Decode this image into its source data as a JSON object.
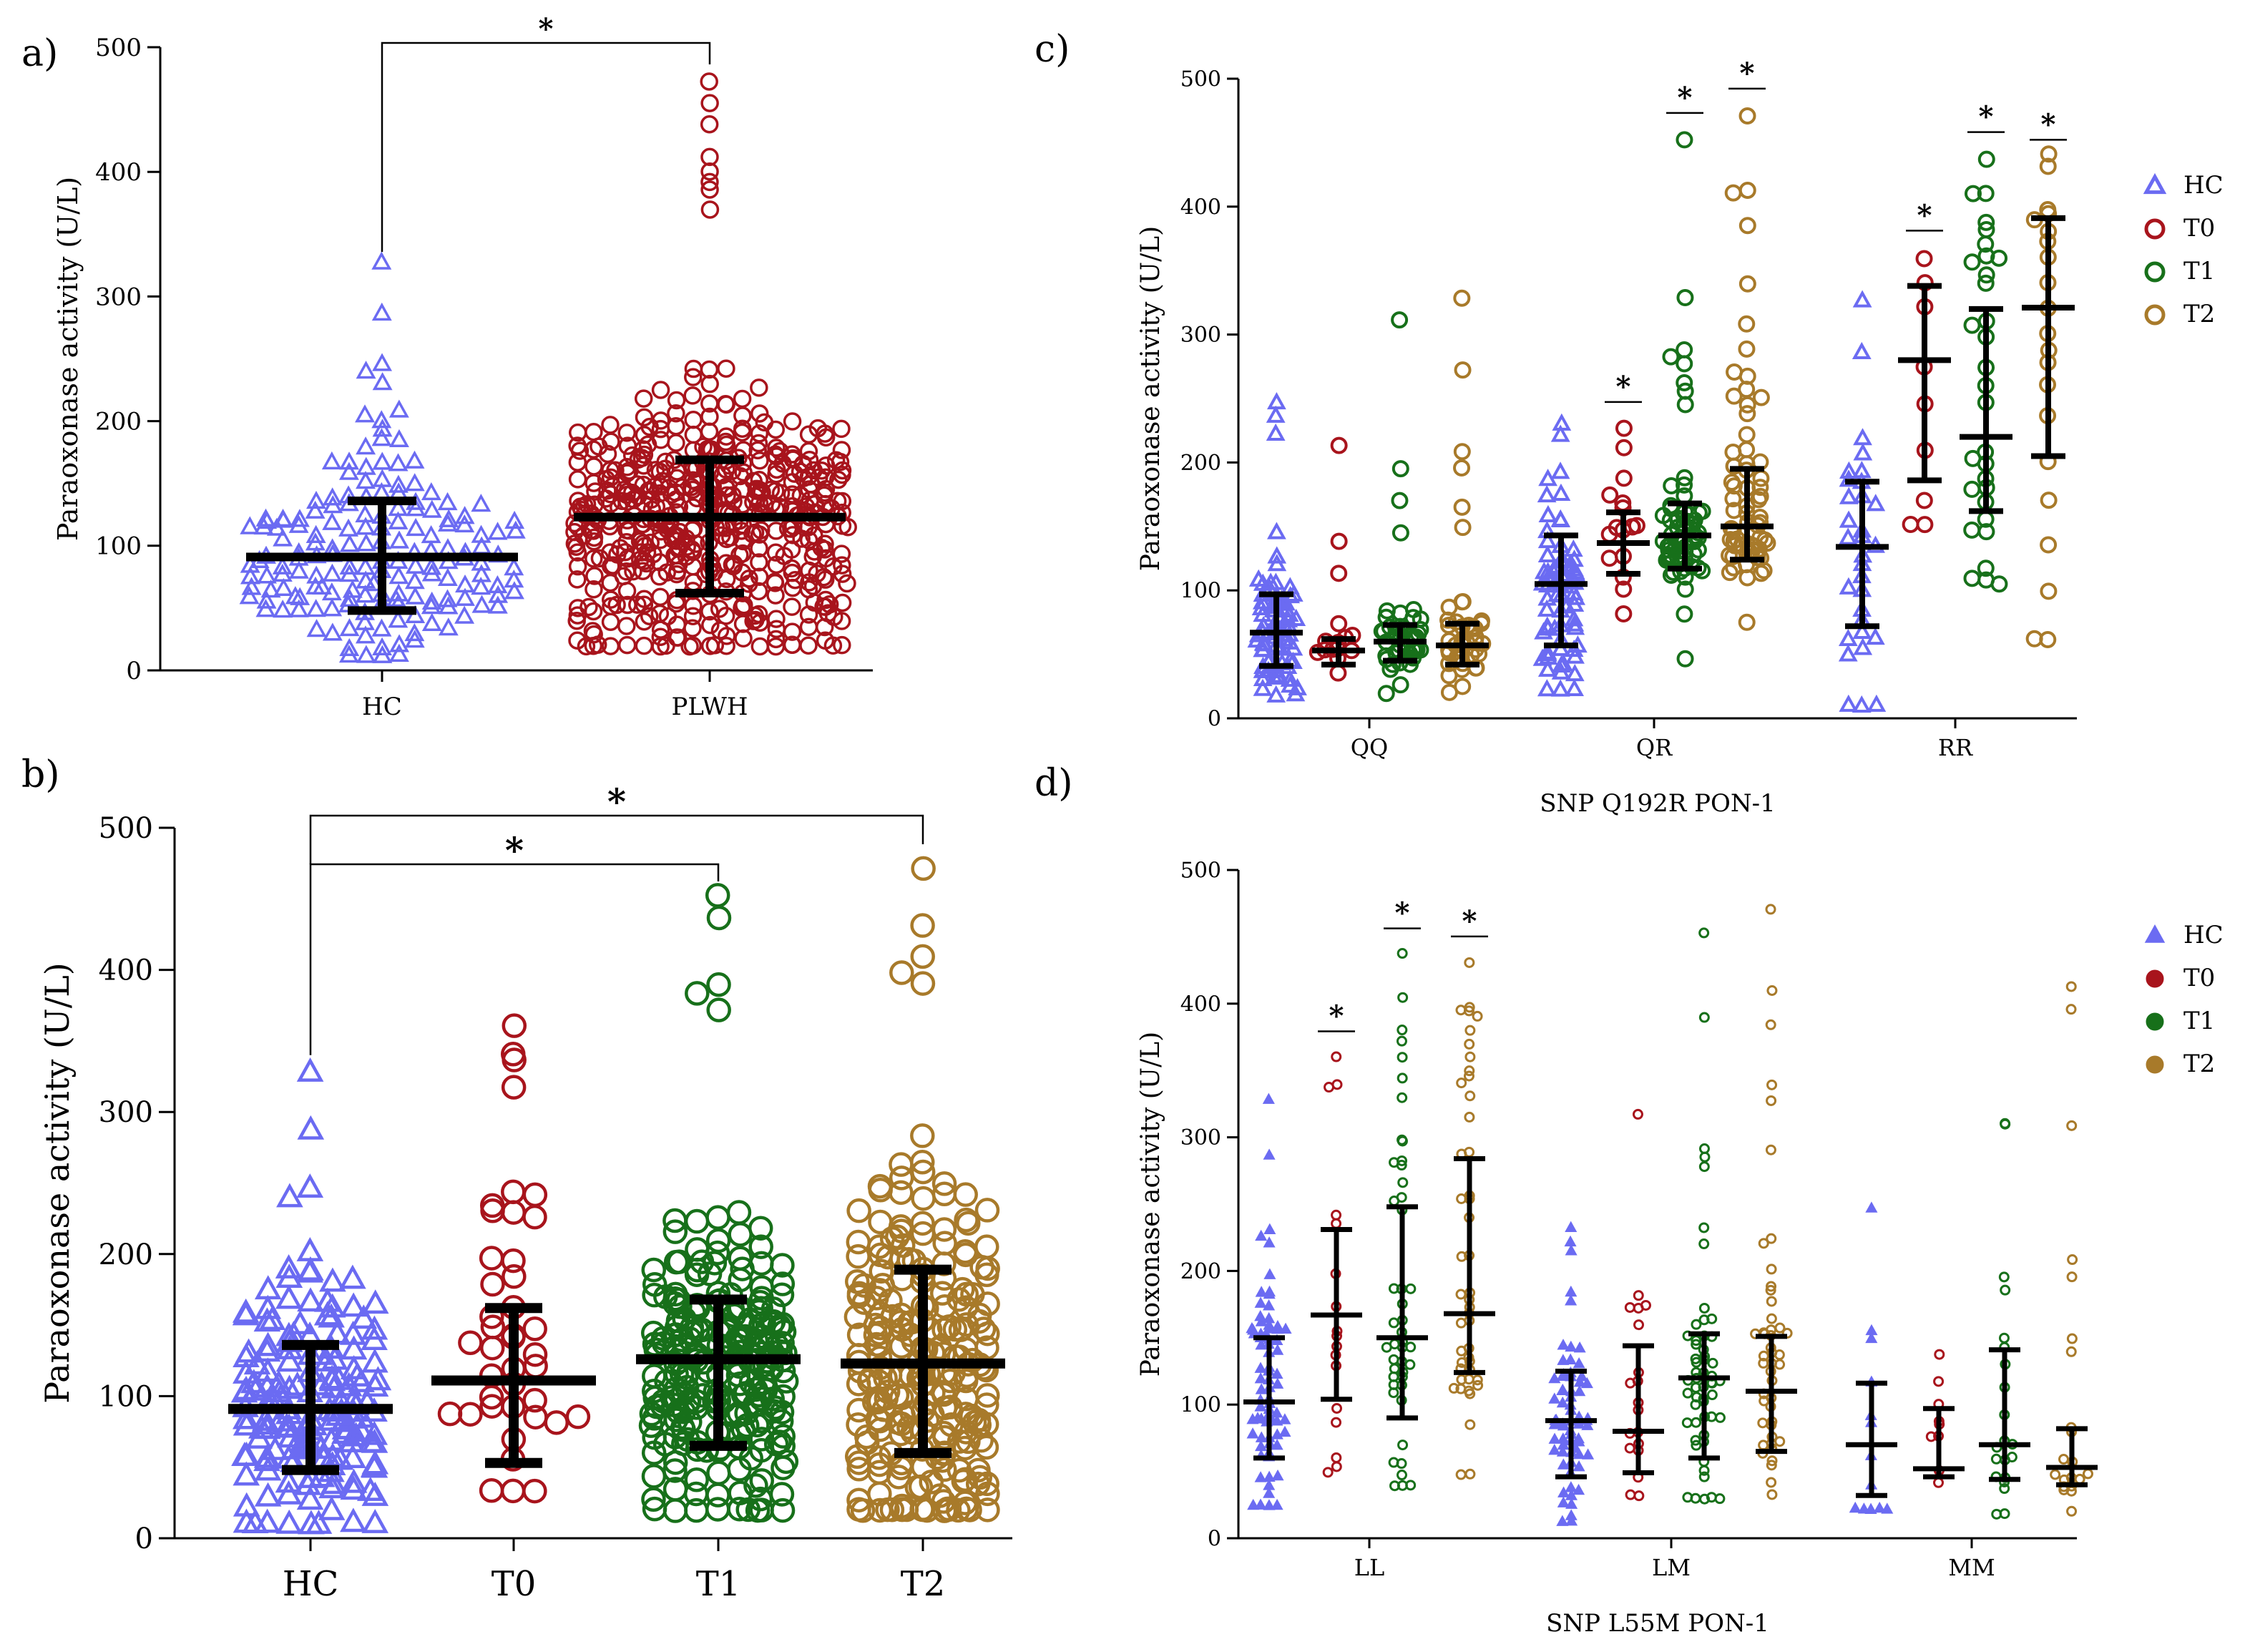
{
  "colors": {
    "HC": "#6b6bf2",
    "T0": "#a8141c",
    "T1": "#17701a",
    "T2": "#a87a2a"
  },
  "figure": {
    "y_axis_label": "Paraoxonase activity (U/L)"
  },
  "chart_data": [
    {
      "panel": "a)",
      "type": "scatter",
      "title": "",
      "xlabel": "",
      "ylabel": "Paraoxonase activity (U/L)",
      "ylim": [
        0,
        500
      ],
      "yticks": [
        "0",
        "100",
        "200",
        "300",
        "400",
        "500"
      ],
      "categories": [
        "HC",
        "PLWH"
      ],
      "series": [
        {
          "name": "HC",
          "color_key": "HC",
          "marker": "triangle",
          "n": 170,
          "mean": 91,
          "sd_low": 48,
          "sd_high": 136,
          "min": 12,
          "max": 328,
          "outliers": [
            328,
            287,
            246,
            240,
            230
          ]
        },
        {
          "name": "PLWH",
          "color_key": "T0",
          "marker": "circle",
          "n": 520,
          "mean": 123,
          "sd_low": 62,
          "sd_high": 169,
          "min": 20,
          "max": 472,
          "outliers": [
            472,
            455,
            438,
            412,
            400,
            392,
            385,
            370
          ]
        }
      ],
      "significance": [
        {
          "from": "HC",
          "to": "PLWH",
          "label": "*"
        }
      ]
    },
    {
      "panel": "b)",
      "type": "scatter",
      "title": "",
      "xlabel": "",
      "ylabel": "Paraoxonase activity (U/L)",
      "ylim": [
        0,
        500
      ],
      "yticks": [
        "0",
        "100",
        "200",
        "300",
        "400",
        "500"
      ],
      "categories": [
        "HC",
        "T0",
        "T1",
        "T2"
      ],
      "series": [
        {
          "name": "HC",
          "color_key": "HC",
          "marker": "triangle",
          "n": 170,
          "mean": 91,
          "sd_low": 48,
          "sd_high": 136,
          "min": 10,
          "max": 328,
          "outliers": [
            328,
            287,
            246,
            240
          ]
        },
        {
          "name": "T0",
          "color_key": "T0",
          "marker": "circle",
          "n": 40,
          "mean": 111,
          "sd_low": 53,
          "sd_high": 162,
          "min": 33,
          "max": 360,
          "outliers": [
            360,
            340,
            336,
            318,
            242,
            230,
            226
          ]
        },
        {
          "name": "T1",
          "color_key": "T1",
          "marker": "circle",
          "n": 240,
          "mean": 126,
          "sd_low": 65,
          "sd_high": 168,
          "min": 20,
          "max": 452,
          "outliers": [
            452,
            436,
            390,
            383,
            372
          ]
        },
        {
          "name": "T2",
          "color_key": "T2",
          "marker": "circle",
          "n": 240,
          "mean": 123,
          "sd_low": 60,
          "sd_high": 189,
          "min": 20,
          "max": 471,
          "outliers": [
            471,
            431,
            410,
            398,
            390
          ]
        }
      ],
      "significance": [
        {
          "from": "HC",
          "to": "T1",
          "label": "*"
        },
        {
          "from": "HC",
          "to": "T2",
          "label": "*"
        }
      ]
    },
    {
      "panel": "c)",
      "type": "scatter",
      "title": "",
      "xlabel": "SNP Q192R PON-1",
      "ylabel": "Paraoxonase activity (U/L)",
      "ylim": [
        0,
        500
      ],
      "yticks": [
        "0",
        "100",
        "200",
        "300",
        "400",
        "500"
      ],
      "categories": [
        "QQ",
        "QR",
        "RR"
      ],
      "legend": [
        "HC",
        "T0",
        "T1",
        "T2"
      ],
      "legend_marker": "open",
      "groups": [
        {
          "category": "QQ",
          "series": [
            {
              "name": "HC",
              "n": 80,
              "mean": 67,
              "sd_low": 41,
              "sd_high": 97,
              "min": 18,
              "max": 246,
              "outliers": [
                246,
                236,
                222
              ]
            },
            {
              "name": "T0",
              "n": 14,
              "mean": 53,
              "sd_low": 42,
              "sd_high": 62,
              "min": 35,
              "max": 214,
              "outliers": [
                214,
                138,
                113
              ]
            },
            {
              "name": "T1",
              "n": 45,
              "mean": 60,
              "sd_low": 45,
              "sd_high": 73,
              "min": 20,
              "max": 311,
              "outliers": [
                311,
                195,
                170,
                145
              ]
            },
            {
              "name": "T2",
              "n": 45,
              "mean": 57,
              "sd_low": 42,
              "sd_high": 74,
              "min": 20,
              "max": 328,
              "outliers": [
                328,
                272,
                208,
                195,
                165,
                150
              ]
            }
          ]
        },
        {
          "category": "QR",
          "series": [
            {
              "name": "HC",
              "n": 70,
              "mean": 105,
              "sd_low": 57,
              "sd_high": 143,
              "min": 22,
              "max": 230,
              "outliers": [
                230,
                222
              ]
            },
            {
              "name": "T0",
              "n": 16,
              "mean": 137,
              "sd_low": 113,
              "sd_high": 161,
              "min": 82,
              "max": 226,
              "outliers": [
                226,
                212
              ]
            },
            {
              "name": "T1",
              "n": 65,
              "mean": 143,
              "sd_low": 117,
              "sd_high": 168,
              "min": 46,
              "max": 452,
              "outliers": [
                452,
                329,
                288,
                282,
                278,
                262,
                255,
                245
              ]
            },
            {
              "name": "T2",
              "n": 65,
              "mean": 150,
              "sd_low": 124,
              "sd_high": 195,
              "min": 75,
              "max": 471,
              "outliers": [
                471,
                412,
                410,
                385,
                340,
                308,
                288,
                270,
                250,
                238
              ]
            }
          ]
        },
        {
          "category": "RR",
          "series": [
            {
              "name": "HC",
              "n": 30,
              "mean": 134,
              "sd_low": 72,
              "sd_high": 185,
              "min": 10,
              "max": 326,
              "outliers": [
                326,
                286,
                218
              ]
            },
            {
              "name": "T0",
              "n": 8,
              "mean": 280,
              "sd_low": 186,
              "sd_high": 338,
              "min": 152,
              "max": 360,
              "outliers": [
                360,
                340,
                322,
                275,
                245,
                210,
                170,
                152
              ]
            },
            {
              "name": "T1",
              "n": 30,
              "mean": 220,
              "sd_low": 162,
              "sd_high": 320,
              "min": 105,
              "max": 437,
              "outliers": [
                437,
                388,
                382,
                370,
                360,
                340
              ]
            },
            {
              "name": "T2",
              "n": 20,
              "mean": 321,
              "sd_low": 205,
              "sd_high": 391,
              "min": 62,
              "max": 431,
              "outliers": [
                431,
                398,
                395,
                390,
                380,
                360,
                320,
                300,
                260,
                200,
                170,
                135,
                100,
                62
              ]
            }
          ]
        }
      ],
      "significance": [
        {
          "category": "QR",
          "series": "T0",
          "label": "*"
        },
        {
          "category": "QR",
          "series": "T1",
          "label": "*"
        },
        {
          "category": "QR",
          "series": "T2",
          "label": "*"
        },
        {
          "category": "RR",
          "series": "T0",
          "label": "*"
        },
        {
          "category": "RR",
          "series": "T1",
          "label": "*"
        },
        {
          "category": "RR",
          "series": "T2",
          "label": "*"
        }
      ]
    },
    {
      "panel": "d)",
      "type": "scatter",
      "title": "",
      "xlabel": "SNP L55M PON-1",
      "ylabel": "Paraoxonase activity (U/L)",
      "ylim": [
        0,
        500
      ],
      "yticks": [
        "0",
        "100",
        "200",
        "300",
        "400",
        "500"
      ],
      "categories": [
        "LL",
        "LM",
        "MM"
      ],
      "legend": [
        "HC",
        "T0",
        "T1",
        "T2"
      ],
      "legend_marker": "filled",
      "groups": [
        {
          "category": "LL",
          "series": [
            {
              "name": "HC",
              "n": 75,
              "mean": 102,
              "sd_low": 60,
              "sd_high": 150,
              "min": 25,
              "max": 328,
              "outliers": [
                328,
                287,
                230,
                225
              ]
            },
            {
              "name": "T0",
              "n": 16,
              "mean": 167,
              "sd_low": 104,
              "sd_high": 231,
              "min": 50,
              "max": 360,
              "outliers": [
                360,
                340,
                338,
                242,
                235
              ]
            },
            {
              "name": "T1",
              "n": 45,
              "mean": 150,
              "sd_low": 90,
              "sd_high": 248,
              "min": 40,
              "max": 437,
              "outliers": [
                437,
                380,
                372,
                360,
                345,
                330
              ]
            },
            {
              "name": "T2",
              "n": 45,
              "mean": 168,
              "sd_low": 124,
              "sd_high": 284,
              "min": 48,
              "max": 431,
              "outliers": [
                431,
                398,
                395,
                390,
                380,
                370,
                360
              ]
            }
          ]
        },
        {
          "category": "LM",
          "series": [
            {
              "name": "HC",
              "n": 65,
              "mean": 88,
              "sd_low": 46,
              "sd_high": 125,
              "min": 12,
              "max": 232,
              "outliers": [
                232,
                222,
                215
              ]
            },
            {
              "name": "T0",
              "n": 18,
              "mean": 80,
              "sd_low": 49,
              "sd_high": 144,
              "min": 32,
              "max": 318,
              "outliers": [
                318,
                175,
                160
              ]
            },
            {
              "name": "T1",
              "n": 55,
              "mean": 120,
              "sd_low": 60,
              "sd_high": 153,
              "min": 30,
              "max": 453,
              "outliers": [
                453,
                389,
                292,
                285,
                278,
                232,
                220
              ]
            },
            {
              "name": "T2",
              "n": 45,
              "mean": 110,
              "sd_low": 65,
              "sd_high": 151,
              "min": 32,
              "max": 471,
              "outliers": [
                471,
                410,
                385,
                340,
                328,
                290,
                225,
                220
              ]
            }
          ]
        },
        {
          "category": "MM",
          "series": [
            {
              "name": "HC",
              "n": 12,
              "mean": 70,
              "sd_low": 32,
              "sd_high": 116,
              "min": 22,
              "max": 246,
              "outliers": [
                246,
                155,
                150
              ]
            },
            {
              "name": "T0",
              "n": 8,
              "mean": 52,
              "sd_low": 46,
              "sd_high": 97,
              "min": 42,
              "max": 138,
              "outliers": [
                138,
                100,
                88
              ]
            },
            {
              "name": "T1",
              "n": 20,
              "mean": 70,
              "sd_low": 44,
              "sd_high": 141,
              "min": 18,
              "max": 311,
              "outliers": [
                311,
                310,
                195,
                185,
                150
              ]
            },
            {
              "name": "T2",
              "n": 20,
              "mean": 53,
              "sd_low": 40,
              "sd_high": 82,
              "min": 20,
              "max": 412,
              "outliers": [
                412,
                395,
                308,
                208,
                195,
                150,
                140
              ]
            }
          ]
        }
      ],
      "significance": [
        {
          "category": "LL",
          "series": "T0",
          "label": "*"
        },
        {
          "category": "LL",
          "series": "T1",
          "label": "*"
        },
        {
          "category": "LL",
          "series": "T2",
          "label": "*"
        }
      ]
    }
  ]
}
